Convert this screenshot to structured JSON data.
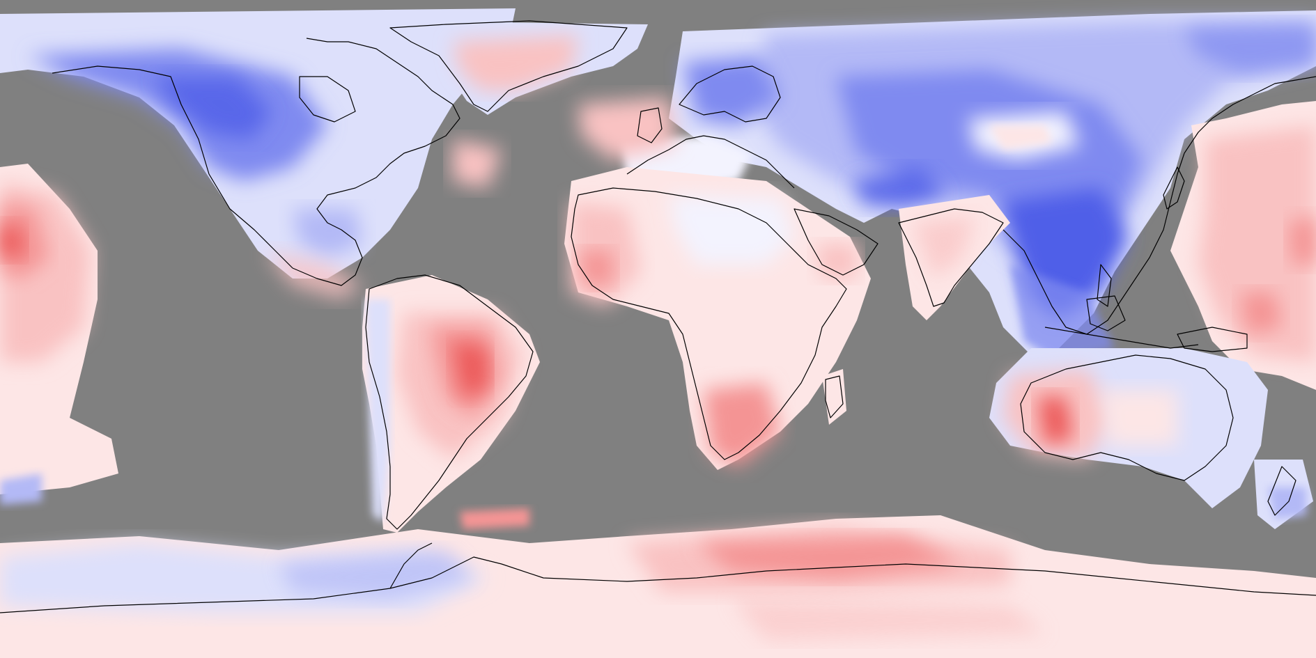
{
  "map": {
    "projection": "equirectangular",
    "extent": {
      "lon": [
        -180,
        180
      ],
      "lat": [
        -90,
        90
      ]
    },
    "colors": {
      "missing": "#808080",
      "coastline": "#000000",
      "cold_strong": "#4f5ee8",
      "cold_medium": "#7f8af0",
      "cold_light": "#b3b9f6",
      "cold_faint": "#dde0fb",
      "neutral": "#f3f3fe",
      "warm_faint": "#fde6e6",
      "warm_light": "#f9c2c2",
      "warm_medium": "#f49494",
      "warm_strong": "#ec5a5a"
    },
    "anomaly_levels": [
      "cold_strong",
      "cold_medium",
      "cold_light",
      "cold_faint",
      "neutral",
      "warm_faint",
      "warm_light",
      "warm_medium",
      "warm_strong"
    ]
  }
}
